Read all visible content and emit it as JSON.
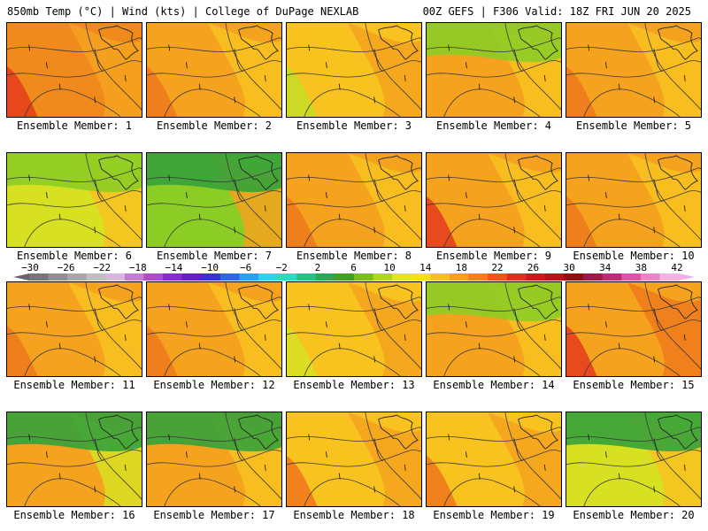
{
  "header": {
    "left": "850mb Temp (°C) | Wind (kts) | College of DuPage NEXLAB",
    "right": "00Z GEFS | F306 Valid: 18Z FRI JUN 20 2025"
  },
  "members": [
    {
      "label": "Ensemble Member: 1",
      "palette": [
        "#f08a1c",
        "#f5a21e",
        "#e5401c"
      ],
      "cool": false
    },
    {
      "label": "Ensemble Member: 2",
      "palette": [
        "#f5a21e",
        "#f8c21f",
        "#ee7a1c"
      ],
      "cool": false
    },
    {
      "label": "Ensemble Member: 3",
      "palette": [
        "#f8c21f",
        "#f5a21e",
        "#c8dc22"
      ],
      "cool": false
    },
    {
      "label": "Ensemble Member: 4",
      "palette": [
        "#f5a21e",
        "#f8c21f",
        "#8ccd25"
      ],
      "cool": true
    },
    {
      "label": "Ensemble Member: 5",
      "palette": [
        "#f5a21e",
        "#f8c21f",
        "#ee7a1c"
      ],
      "cool": false
    },
    {
      "label": "Ensemble Member: 6",
      "palette": [
        "#d8e022",
        "#f8c21f",
        "#8ccd25"
      ],
      "cool": true
    },
    {
      "label": "Ensemble Member: 7",
      "palette": [
        "#8ccd25",
        "#f5a21e",
        "#36a23a"
      ],
      "cool": true
    },
    {
      "label": "Ensemble Member: 8",
      "palette": [
        "#f5a21e",
        "#f8c21f",
        "#ee7a1c"
      ],
      "cool": false
    },
    {
      "label": "Ensemble Member: 9",
      "palette": [
        "#f5a21e",
        "#f8c21f",
        "#e5401c"
      ],
      "cool": false
    },
    {
      "label": "Ensemble Member: 10",
      "palette": [
        "#f5a21e",
        "#f8c21f",
        "#ee7a1c"
      ],
      "cool": false
    },
    {
      "label": "Ensemble Member: 11",
      "palette": [
        "#f5a21e",
        "#f8c21f",
        "#ee7a1c"
      ],
      "cool": false
    },
    {
      "label": "Ensemble Member: 12",
      "palette": [
        "#f5a21e",
        "#f8c21f",
        "#ee7a1c"
      ],
      "cool": false
    },
    {
      "label": "Ensemble Member: 13",
      "palette": [
        "#f8c21f",
        "#f5a21e",
        "#d8e022"
      ],
      "cool": false
    },
    {
      "label": "Ensemble Member: 14",
      "palette": [
        "#f5a21e",
        "#f8c21f",
        "#8ccd25"
      ],
      "cool": true
    },
    {
      "label": "Ensemble Member: 15",
      "palette": [
        "#f5a21e",
        "#ee7a1c",
        "#e5401c"
      ],
      "cool": false
    },
    {
      "label": "Ensemble Member: 16",
      "palette": [
        "#f5a21e",
        "#d8e022",
        "#36a23a"
      ],
      "cool": true
    },
    {
      "label": "Ensemble Member: 17",
      "palette": [
        "#f5a21e",
        "#f8c21f",
        "#36a23a"
      ],
      "cool": true
    },
    {
      "label": "Ensemble Member: 18",
      "palette": [
        "#f8c21f",
        "#f5a21e",
        "#ee7a1c"
      ],
      "cool": false
    },
    {
      "label": "Ensemble Member: 19",
      "palette": [
        "#f8c21f",
        "#f5a21e",
        "#ee7a1c"
      ],
      "cool": false
    },
    {
      "label": "Ensemble Member: 20",
      "palette": [
        "#d8e022",
        "#f8c21f",
        "#36a23a"
      ],
      "cool": true
    }
  ],
  "colorbar": {
    "ticks": [
      "−30",
      "−26",
      "−22",
      "−18",
      "−14",
      "−10",
      "−6",
      "−2",
      "2",
      "6",
      "10",
      "14",
      "18",
      "22",
      "26",
      "30",
      "34",
      "38",
      "42"
    ],
    "colors": [
      "#777777",
      "#909090",
      "#a8a8a8",
      "#c0c0c0",
      "#d6b6e6",
      "#c67ad8",
      "#b04ad0",
      "#8c2cc8",
      "#6a20c0",
      "#3a32d0",
      "#2a6ae0",
      "#2aa0f0",
      "#30d0f0",
      "#30d8c0",
      "#28c088",
      "#2aa84c",
      "#40a020",
      "#78c018",
      "#b0d818",
      "#e0e818",
      "#f8e018",
      "#f8c018",
      "#f8a018",
      "#f08018",
      "#e85818",
      "#e03018",
      "#d01818",
      "#b01818",
      "#901010",
      "#a01848",
      "#c02880",
      "#e050b0",
      "#f080d0",
      "#f8b0e8"
    ]
  }
}
